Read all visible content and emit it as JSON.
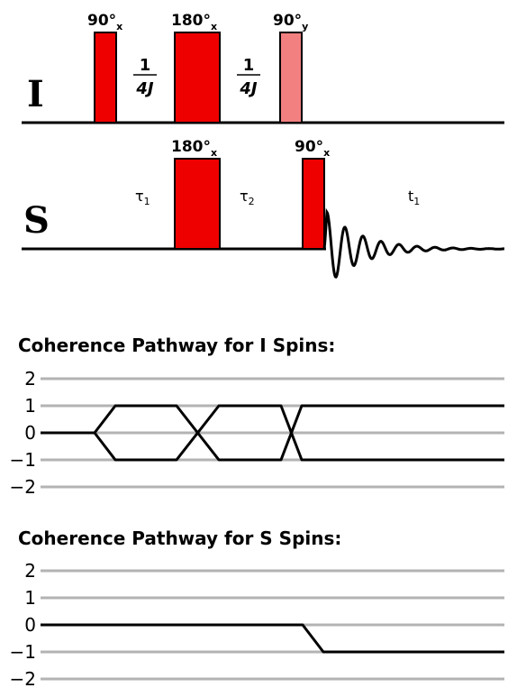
{
  "colors": {
    "pulse": "#ee0000",
    "pulse_light": "#f28080",
    "line": "#000000",
    "grid": "#b3b3b3"
  },
  "sequence": {
    "i_channel_label": "I",
    "s_channel_label": "S",
    "i_pulses": [
      {
        "angle": "90",
        "phase": "x"
      },
      {
        "angle": "180",
        "phase": "x"
      },
      {
        "angle": "90",
        "phase": "y"
      }
    ],
    "s_pulses": [
      {
        "angle": "180",
        "phase": "x"
      },
      {
        "angle": "90",
        "phase": "x"
      }
    ],
    "delay_numerator": "1",
    "delay_denominator": "4J",
    "tau1": {
      "symbol": "τ",
      "sub": "1"
    },
    "tau2": {
      "symbol": "τ",
      "sub": "2"
    },
    "t1": {
      "symbol": "t",
      "sub": "1"
    }
  },
  "pathway_i": {
    "title": "Coherence Pathway for I Spins:",
    "levels": [
      "2",
      "1",
      "0",
      "−1",
      "−2"
    ]
  },
  "pathway_s": {
    "title": "Coherence Pathway for S Spins:",
    "levels": [
      "2",
      "1",
      "0",
      "−1",
      "−2"
    ]
  }
}
